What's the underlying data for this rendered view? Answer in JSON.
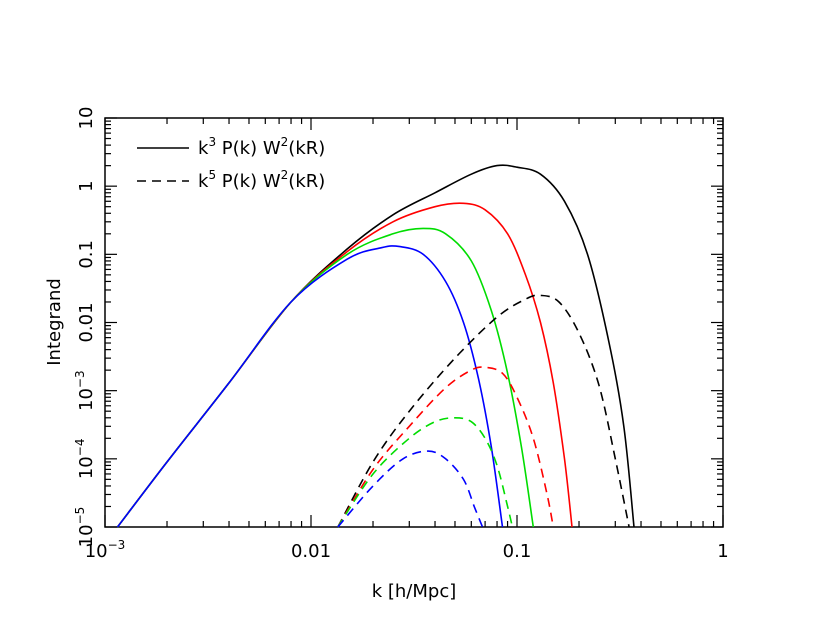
{
  "chart_data": {
    "type": "line",
    "xlabel": "k  [h/Mpc]",
    "ylabel": "Integrand",
    "x_scale": "log",
    "y_scale": "log",
    "xlim": [
      0.001,
      1
    ],
    "ylim": [
      1e-05,
      10
    ],
    "grid": false,
    "legend_position": "top-left",
    "x_ticks": [
      {
        "value": 0.001,
        "base": "10",
        "exp": "−3"
      },
      {
        "value": 0.01,
        "text": "0.01"
      },
      {
        "value": 0.1,
        "text": "0.1"
      },
      {
        "value": 1,
        "text": "1"
      }
    ],
    "y_ticks": [
      {
        "value": 1e-05,
        "base": "10",
        "exp": "−5"
      },
      {
        "value": 0.0001,
        "base": "10",
        "exp": "−4"
      },
      {
        "value": 0.001,
        "base": "10",
        "exp": "−3"
      },
      {
        "value": 0.01,
        "text": "0.01"
      },
      {
        "value": 0.1,
        "text": "0.1"
      },
      {
        "value": 1,
        "text": "1"
      },
      {
        "value": 10,
        "text": "10"
      }
    ],
    "legend": [
      {
        "style": "solid",
        "prefix": "k",
        "power": "3",
        "mid": " P(k) W",
        "power2": "2",
        "suffix": "(kR)"
      },
      {
        "style": "dashed",
        "prefix": "k",
        "power": "5",
        "mid": " P(k) W",
        "power2": "2",
        "suffix": "(kR)"
      }
    ],
    "series": [
      {
        "color": "#000000",
        "style": "solid",
        "points": [
          [
            0.00115,
            1e-05
          ],
          [
            0.002,
            9e-05
          ],
          [
            0.004,
            0.0013
          ],
          [
            0.008,
            0.02
          ],
          [
            0.015,
            0.12
          ],
          [
            0.025,
            0.38
          ],
          [
            0.04,
            0.8
          ],
          [
            0.06,
            1.5
          ],
          [
            0.08,
            2.0
          ],
          [
            0.1,
            1.9
          ],
          [
            0.13,
            1.5
          ],
          [
            0.17,
            0.6
          ],
          [
            0.22,
            0.1
          ],
          [
            0.28,
            0.005
          ],
          [
            0.33,
            0.0003
          ],
          [
            0.37,
            1e-05
          ]
        ]
      },
      {
        "color": "#ff0000",
        "style": "solid",
        "points": [
          [
            0.00115,
            1e-05
          ],
          [
            0.002,
            9e-05
          ],
          [
            0.004,
            0.0013
          ],
          [
            0.008,
            0.02
          ],
          [
            0.015,
            0.11
          ],
          [
            0.025,
            0.3
          ],
          [
            0.04,
            0.5
          ],
          [
            0.055,
            0.56
          ],
          [
            0.07,
            0.45
          ],
          [
            0.09,
            0.2
          ],
          [
            0.11,
            0.05
          ],
          [
            0.13,
            0.01
          ],
          [
            0.15,
            0.0013
          ],
          [
            0.17,
            0.0001
          ],
          [
            0.185,
            1e-05
          ]
        ]
      },
      {
        "color": "#00dd00",
        "style": "solid",
        "points": [
          [
            0.00115,
            1e-05
          ],
          [
            0.002,
            9e-05
          ],
          [
            0.004,
            0.0013
          ],
          [
            0.008,
            0.02
          ],
          [
            0.015,
            0.1
          ],
          [
            0.025,
            0.2
          ],
          [
            0.035,
            0.24
          ],
          [
            0.045,
            0.2
          ],
          [
            0.06,
            0.08
          ],
          [
            0.075,
            0.015
          ],
          [
            0.09,
            0.0018
          ],
          [
            0.105,
            0.00015
          ],
          [
            0.12,
            1e-05
          ]
        ]
      },
      {
        "color": "#0000ff",
        "style": "solid",
        "points": [
          [
            0.00115,
            1e-05
          ],
          [
            0.002,
            9e-05
          ],
          [
            0.004,
            0.0013
          ],
          [
            0.008,
            0.02
          ],
          [
            0.015,
            0.085
          ],
          [
            0.022,
            0.125
          ],
          [
            0.027,
            0.13
          ],
          [
            0.035,
            0.1
          ],
          [
            0.045,
            0.04
          ],
          [
            0.055,
            0.01
          ],
          [
            0.065,
            0.0015
          ],
          [
            0.075,
            0.00015
          ],
          [
            0.085,
            1e-05
          ]
        ]
      },
      {
        "color": "#000000",
        "style": "dashed",
        "points": [
          [
            0.0135,
            1e-05
          ],
          [
            0.02,
            9e-05
          ],
          [
            0.03,
            0.0005
          ],
          [
            0.05,
            0.003
          ],
          [
            0.08,
            0.012
          ],
          [
            0.11,
            0.022
          ],
          [
            0.13,
            0.025
          ],
          [
            0.16,
            0.02
          ],
          [
            0.2,
            0.007
          ],
          [
            0.25,
            0.0012
          ],
          [
            0.3,
            0.0001
          ],
          [
            0.35,
            1e-05
          ]
        ]
      },
      {
        "color": "#ff0000",
        "style": "dashed",
        "points": [
          [
            0.0135,
            1e-05
          ],
          [
            0.02,
            7e-05
          ],
          [
            0.03,
            0.0003
          ],
          [
            0.045,
            0.0011
          ],
          [
            0.06,
            0.002
          ],
          [
            0.07,
            0.0022
          ],
          [
            0.085,
            0.0018
          ],
          [
            0.1,
            0.0008
          ],
          [
            0.12,
            0.0002
          ],
          [
            0.14,
            3e-05
          ],
          [
            0.15,
            1e-05
          ]
        ]
      },
      {
        "color": "#00dd00",
        "style": "dashed",
        "points": [
          [
            0.0135,
            1e-05
          ],
          [
            0.02,
            6e-05
          ],
          [
            0.03,
            0.0002
          ],
          [
            0.04,
            0.00035
          ],
          [
            0.05,
            0.0004
          ],
          [
            0.06,
            0.00035
          ],
          [
            0.07,
            0.0002
          ],
          [
            0.08,
            8e-05
          ],
          [
            0.09,
            2e-05
          ],
          [
            0.095,
            1e-05
          ]
        ]
      },
      {
        "color": "#0000ff",
        "style": "dashed",
        "points": [
          [
            0.0135,
            1e-05
          ],
          [
            0.02,
            4e-05
          ],
          [
            0.028,
            0.0001
          ],
          [
            0.037,
            0.00013
          ],
          [
            0.045,
            0.0001
          ],
          [
            0.055,
            5e-05
          ],
          [
            0.062,
            2e-05
          ],
          [
            0.068,
            1e-05
          ]
        ]
      }
    ]
  }
}
